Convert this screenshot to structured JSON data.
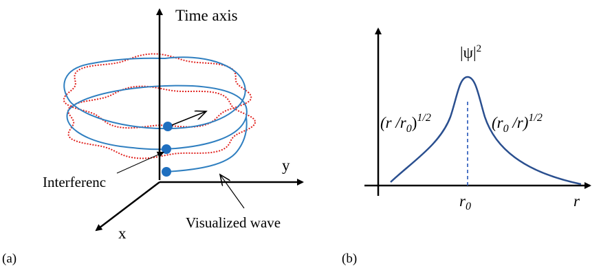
{
  "panel_a": {
    "label": "(a)",
    "time_axis_label": "Time axis",
    "y_label": "y",
    "x_label": "x",
    "interference_label": "Interferenc",
    "visualized_wave_label": "Visualized wave"
  },
  "panel_b": {
    "label": "(b)",
    "psi_label": "|ψ|",
    "psi_exponent": "2",
    "left_branch": {
      "base": "(r /r",
      "sub": "0",
      "close": ")",
      "exp": "1/2"
    },
    "right_branch": {
      "base": "(r",
      "sub": "0",
      "mid": " /r)",
      "exp": "1/2"
    },
    "r0_label": "r",
    "r0_sub": "0",
    "r_label": "r"
  },
  "colors": {
    "helix": "#2f7fc0",
    "dotted_wave": "#e0201c",
    "dot": "#1f6fbf",
    "curve": "#2a4f8f",
    "dashed": "#3a66c0",
    "axis": "#000000"
  }
}
